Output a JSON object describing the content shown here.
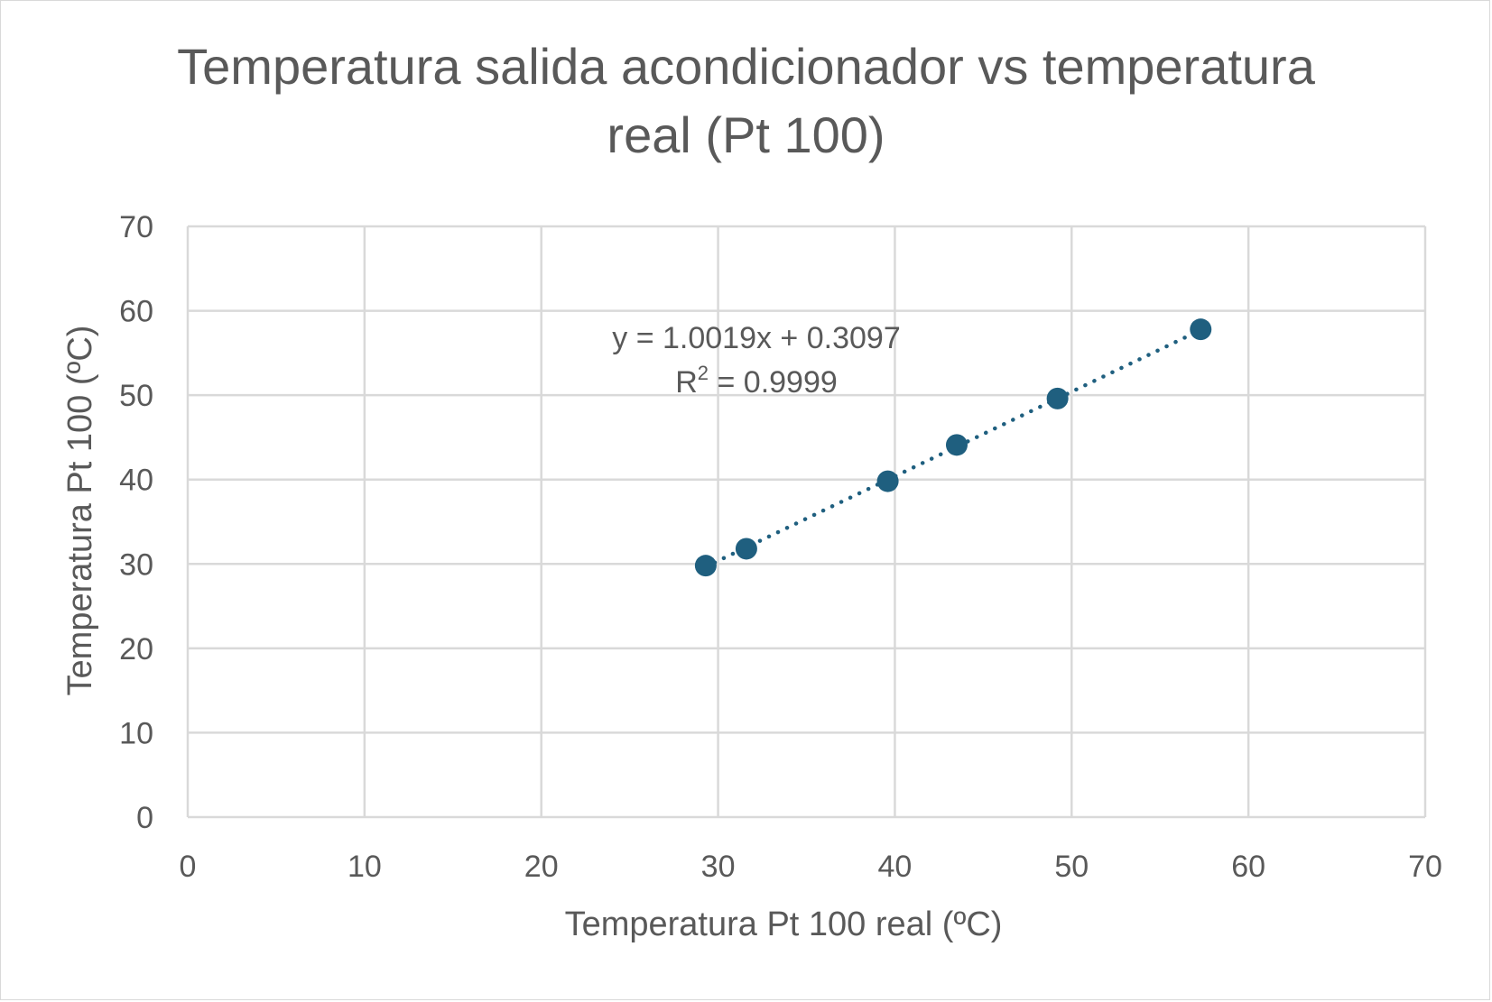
{
  "chart_data": {
    "type": "scatter",
    "title_lines": [
      "Temperatura salida acondicionador vs temperatura",
      "real (Pt 100)"
    ],
    "xlabel": "Temperatura Pt 100 real (ºC)",
    "ylabel": "Temperatura Pt 100 (ºC)",
    "xlim": [
      0,
      70
    ],
    "ylim": [
      0,
      70
    ],
    "x_ticks": [
      0,
      10,
      20,
      30,
      40,
      50,
      60,
      70
    ],
    "y_ticks": [
      0,
      10,
      20,
      30,
      40,
      50,
      60,
      70
    ],
    "grid": true,
    "legend": "none",
    "series": [
      {
        "points": [
          {
            "x": 29.3,
            "y": 29.8
          },
          {
            "x": 31.6,
            "y": 31.8
          },
          {
            "x": 39.6,
            "y": 39.8
          },
          {
            "x": 43.5,
            "y": 44.1
          },
          {
            "x": 49.2,
            "y": 49.6
          },
          {
            "x": 57.3,
            "y": 57.8
          }
        ],
        "color": "#1f5f7f"
      }
    ],
    "trendline": {
      "type": "linear",
      "style": "dotted",
      "color": "#1f5f7f",
      "slope": 1.0019,
      "intercept": 0.3097,
      "equation_label": "y = 1.0019x + 0.3097",
      "r2_prefix": "R",
      "r2_superscript": "2",
      "r2_suffix": " = 0.9999"
    },
    "colors": {
      "grid": "#d9d9d9",
      "text": "#595959",
      "marker": "#1f5f7f"
    }
  }
}
